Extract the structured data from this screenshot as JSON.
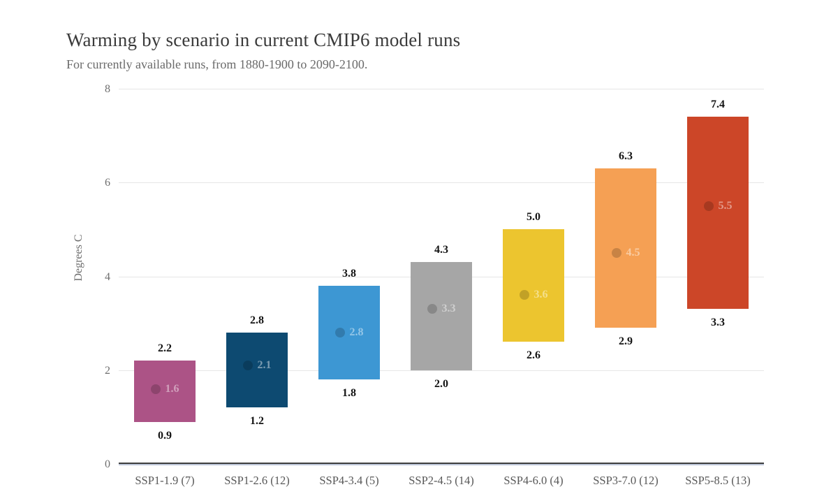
{
  "header": {
    "title": "Warming by scenario in current CMIP6 model runs",
    "subtitle": "For currently available runs, from 1880-1900 to 2090-2100."
  },
  "chart_data": {
    "type": "bar",
    "subtype": "floating-range-bar",
    "title": "Warming by scenario in current CMIP6 model runs",
    "subtitle": "For currently available runs, from 1880-1900 to 2090-2100.",
    "xlabel": "",
    "ylabel": "Degrees C",
    "ylim": [
      0,
      8
    ],
    "yticks": [
      0,
      2,
      4,
      6,
      8
    ],
    "ytick_labels": [
      "0",
      "2",
      "4",
      "6",
      "8"
    ],
    "grid": "horizontal",
    "legend": "none",
    "categories": [
      "SSP1-1.9 (7)",
      "SSP1-2.6 (12)",
      "SSP4-3.4 (5)",
      "SSP2-4.5 (14)",
      "SSP4-6.0 (4)",
      "SSP3-7.0 (12)",
      "SSP5-8.5 (13)"
    ],
    "series": [
      {
        "name": "SSP1-1.9 (7)",
        "min": 0.9,
        "max": 2.2,
        "mean": 1.6,
        "min_label": "0.9",
        "max_label": "2.2",
        "mean_label": "1.6",
        "color": "#ac5386"
      },
      {
        "name": "SSP1-2.6 (12)",
        "min": 1.2,
        "max": 2.8,
        "mean": 2.1,
        "min_label": "1.2",
        "max_label": "2.8",
        "mean_label": "2.1",
        "color": "#0d4a71"
      },
      {
        "name": "SSP4-3.4 (5)",
        "min": 1.8,
        "max": 3.8,
        "mean": 2.8,
        "min_label": "1.8",
        "max_label": "3.8",
        "mean_label": "2.8",
        "color": "#3d97d3"
      },
      {
        "name": "SSP2-4.5 (14)",
        "min": 2.0,
        "max": 4.3,
        "mean": 3.3,
        "min_label": "2.0",
        "max_label": "4.3",
        "mean_label": "3.3",
        "color": "#a6a6a6"
      },
      {
        "name": "SSP4-6.0 (4)",
        "min": 2.6,
        "max": 5.0,
        "mean": 3.6,
        "min_label": "2.6",
        "max_label": "5.0",
        "mean_label": "3.6",
        "color": "#ecc52f"
      },
      {
        "name": "SSP3-7.0 (12)",
        "min": 2.9,
        "max": 6.3,
        "mean": 4.5,
        "min_label": "2.9",
        "max_label": "6.3",
        "mean_label": "4.5",
        "color": "#f5a054"
      },
      {
        "name": "SSP5-8.5 (13)",
        "min": 3.3,
        "max": 7.4,
        "mean": 5.5,
        "min_label": "3.3",
        "max_label": "7.4",
        "mean_label": "5.5",
        "color": "#cc4628"
      }
    ],
    "colors": {
      "gridline": "#e6e6e6",
      "baseline_dark": "#3e3e3e",
      "baseline_light": "#bfc8da",
      "title_text": "#3a3a3a",
      "subtitle_text": "#6a6a6a",
      "axis_text": "#6e6e6e",
      "category_text": "#585858",
      "range_label_text": "#141414"
    }
  }
}
